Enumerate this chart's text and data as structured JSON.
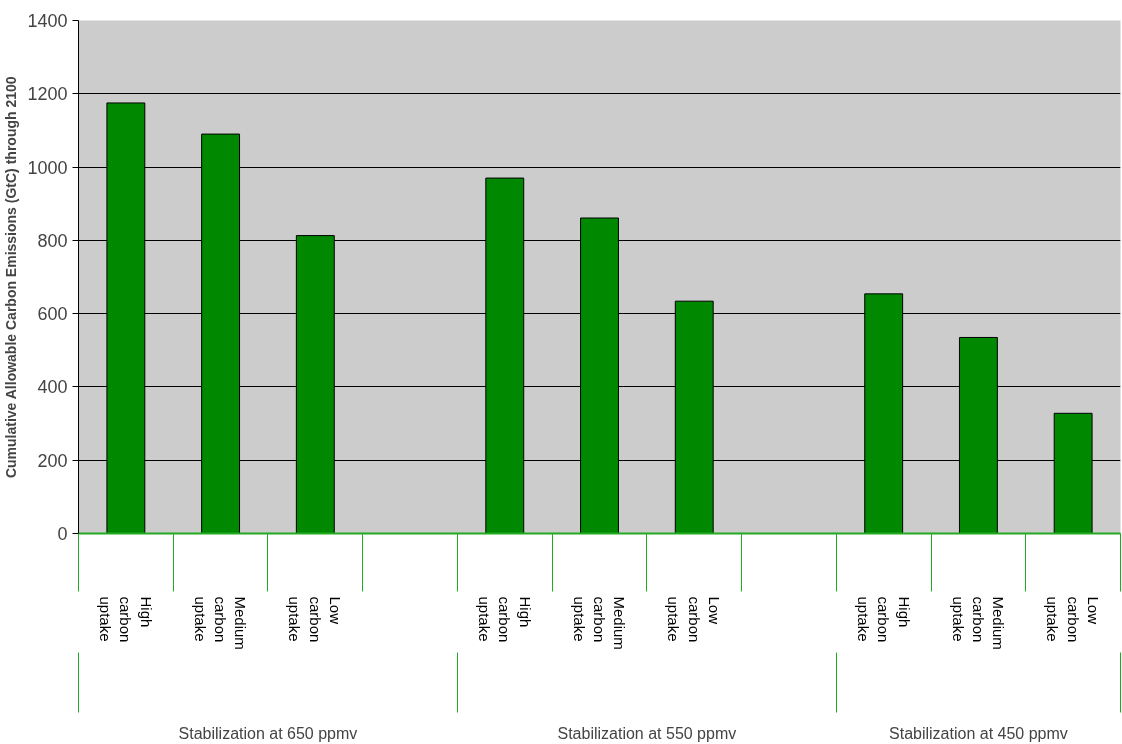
{
  "chart_data": {
    "type": "bar",
    "ylabel": "Cumulative Allowable Carbon Emissions (GtC) through 2100",
    "categories": [
      "High carbon uptake",
      "Medium carbon uptake",
      "Low carbon uptake",
      null,
      "High carbon uptake",
      "Medium carbon uptake",
      "Low carbon uptake",
      null,
      "High carbon uptake",
      "Medium carbon uptake",
      "Low carbon uptake"
    ],
    "values": [
      1175,
      1090,
      813,
      null,
      970,
      861,
      634,
      null,
      654,
      535,
      328
    ],
    "color": "#008800",
    "ylim": [
      0,
      1400
    ],
    "yticks": [
      0,
      200,
      400,
      600,
      800,
      1000,
      1200,
      1400
    ],
    "grid": "y",
    "annotations": [
      "Stabilization at 650 ppmv",
      "Stabilization at 550 ppmv",
      "Stabilization at 450 ppmv"
    ]
  }
}
